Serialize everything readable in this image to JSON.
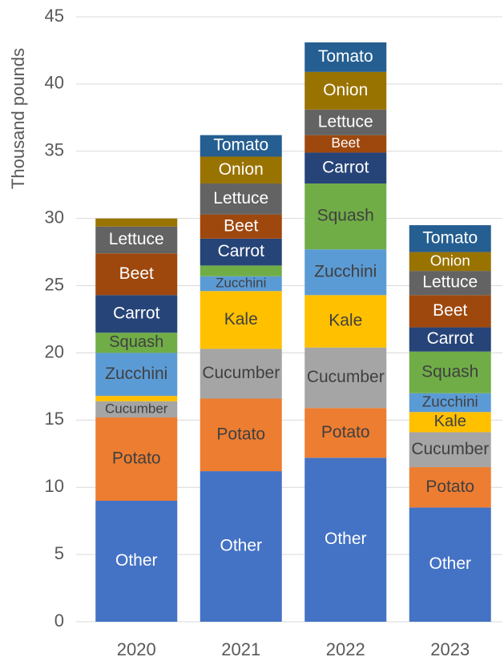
{
  "chart_data": {
    "type": "stacked_bar",
    "y_label": "Thousand pounds",
    "categories": [
      "2020",
      "2021",
      "2022",
      "2023"
    ],
    "series": [
      {
        "name": "Other",
        "color": "#4472C4",
        "values": [
          9.0,
          11.2,
          12.2,
          8.5
        ]
      },
      {
        "name": "Potato",
        "color": "#ED7D31",
        "values": [
          6.2,
          5.4,
          3.7,
          3.0
        ]
      },
      {
        "name": "Cucumber",
        "color": "#A5A5A5",
        "values": [
          1.2,
          3.7,
          4.5,
          2.6
        ]
      },
      {
        "name": "Kale",
        "color": "#FFC000",
        "values": [
          0.4,
          4.3,
          3.9,
          1.5
        ]
      },
      {
        "name": "Zucchini",
        "color": "#5B9BD5",
        "values": [
          3.2,
          1.1,
          3.4,
          1.4
        ]
      },
      {
        "name": "Squash",
        "color": "#70AD47",
        "values": [
          1.5,
          0.8,
          4.9,
          3.1
        ]
      },
      {
        "name": "Carrot",
        "color": "#264478",
        "values": [
          2.8,
          2.0,
          2.3,
          1.8
        ]
      },
      {
        "name": "Beet",
        "color": "#9E480E",
        "values": [
          3.1,
          1.8,
          1.3,
          2.4
        ]
      },
      {
        "name": "Lettuce",
        "color": "#636363",
        "values": [
          2.0,
          2.3,
          1.9,
          1.8
        ]
      },
      {
        "name": "Onion",
        "color": "#997300",
        "values": [
          0.6,
          2.0,
          2.8,
          1.4
        ]
      },
      {
        "name": "Tomato",
        "color": "#255E91",
        "values": [
          0,
          1.6,
          2.2,
          2.0
        ]
      }
    ],
    "ylim": [
      0,
      45
    ],
    "yticks": [
      0,
      5,
      10,
      15,
      20,
      25,
      30,
      35,
      40,
      45
    ],
    "grid": true
  }
}
